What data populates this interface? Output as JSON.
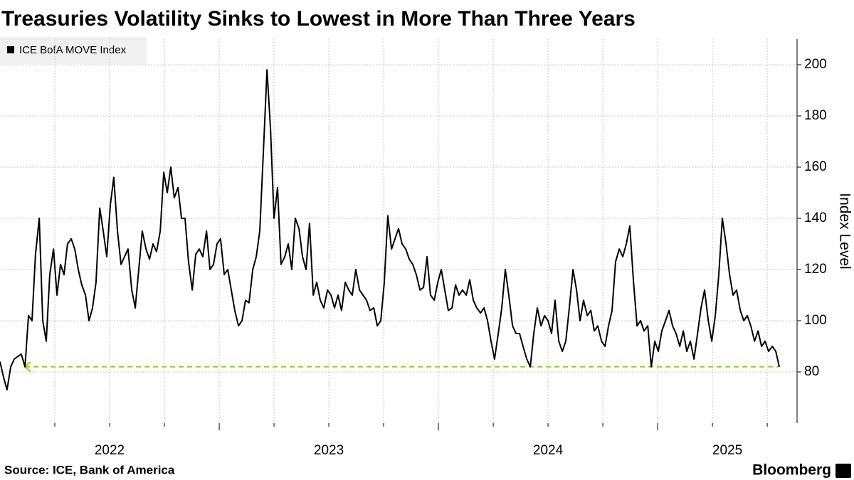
{
  "chart_data": {
    "type": "line",
    "title": "Treasuries Volatility Sinks to Lowest in More Than Three Years",
    "ylabel": "Index Level",
    "source": "Source: ICE, Bank of America",
    "brand": "Bloomberg",
    "x": [
      2022.0,
      2022.016,
      2022.032,
      2022.049,
      2022.065,
      2022.081,
      2022.097,
      2022.114,
      2022.13,
      2022.146,
      2022.162,
      2022.179,
      2022.195,
      2022.211,
      2022.227,
      2022.244,
      2022.26,
      2022.276,
      2022.292,
      2022.308,
      2022.325,
      2022.341,
      2022.357,
      2022.373,
      2022.39,
      2022.406,
      2022.422,
      2022.438,
      2022.455,
      2022.471,
      2022.487,
      2022.503,
      2022.519,
      2022.536,
      2022.552,
      2022.568,
      2022.584,
      2022.601,
      2022.617,
      2022.633,
      2022.649,
      2022.666,
      2022.682,
      2022.698,
      2022.714,
      2022.731,
      2022.747,
      2022.763,
      2022.779,
      2022.795,
      2022.812,
      2022.828,
      2022.844,
      2022.86,
      2022.877,
      2022.893,
      2022.909,
      2022.925,
      2022.942,
      2022.958,
      2022.974,
      2022.99,
      2023.006,
      2023.023,
      2023.039,
      2023.055,
      2023.071,
      2023.088,
      2023.104,
      2023.12,
      2023.136,
      2023.153,
      2023.169,
      2023.185,
      2023.201,
      2023.218,
      2023.234,
      2023.25,
      2023.266,
      2023.282,
      2023.299,
      2023.315,
      2023.331,
      2023.347,
      2023.364,
      2023.38,
      2023.396,
      2023.412,
      2023.429,
      2023.445,
      2023.461,
      2023.477,
      2023.494,
      2023.51,
      2023.526,
      2023.542,
      2023.558,
      2023.575,
      2023.591,
      2023.607,
      2023.623,
      2023.64,
      2023.656,
      2023.672,
      2023.688,
      2023.705,
      2023.721,
      2023.737,
      2023.753,
      2023.769,
      2023.786,
      2023.802,
      2023.818,
      2023.834,
      2023.851,
      2023.867,
      2023.883,
      2023.899,
      2023.916,
      2023.932,
      2023.948,
      2023.964,
      2023.981,
      2023.997,
      2024.013,
      2024.029,
      2024.045,
      2024.062,
      2024.078,
      2024.094,
      2024.11,
      2024.127,
      2024.143,
      2024.159,
      2024.175,
      2024.192,
      2024.208,
      2024.224,
      2024.24,
      2024.256,
      2024.273,
      2024.289,
      2024.305,
      2024.321,
      2024.338,
      2024.354,
      2024.37,
      2024.386,
      2024.403,
      2024.419,
      2024.435,
      2024.451,
      2024.468,
      2024.484,
      2024.5,
      2024.516,
      2024.532,
      2024.549,
      2024.565,
      2024.581,
      2024.597,
      2024.614,
      2024.63,
      2024.646,
      2024.662,
      2024.679,
      2024.695,
      2024.711,
      2024.727,
      2024.744,
      2024.76,
      2024.776,
      2024.792,
      2024.808,
      2024.825,
      2024.841,
      2024.857,
      2024.873,
      2024.89,
      2024.906,
      2024.922,
      2024.938,
      2024.955,
      2024.971,
      2024.987,
      2025.003,
      2025.019,
      2025.036,
      2025.052,
      2025.068,
      2025.084,
      2025.101,
      2025.117,
      2025.133,
      2025.149,
      2025.166,
      2025.182,
      2025.198,
      2025.214,
      2025.231,
      2025.247,
      2025.263,
      2025.279,
      2025.295,
      2025.312,
      2025.328,
      2025.344,
      2025.36,
      2025.377,
      2025.393,
      2025.409,
      2025.425,
      2025.442,
      2025.458,
      2025.474,
      2025.49,
      2025.506,
      2025.523,
      2025.539,
      2025.555
    ],
    "series": [
      {
        "name": "ICE BofA MOVE Index",
        "color": "#000000",
        "values": [
          84,
          78,
          73,
          82,
          85,
          86,
          87,
          82,
          102,
          100,
          126,
          140,
          100,
          92,
          118,
          128,
          110,
          122,
          118,
          130,
          132,
          128,
          120,
          114,
          110,
          100,
          105,
          115,
          144,
          135,
          125,
          145,
          156,
          135,
          122,
          125,
          128,
          112,
          105,
          120,
          135,
          128,
          124,
          130,
          127,
          135,
          158,
          150,
          160,
          148,
          152,
          140,
          140,
          123,
          112,
          126,
          128,
          125,
          135,
          120,
          122,
          130,
          132,
          118,
          120,
          112,
          104,
          98,
          100,
          108,
          107,
          120,
          125,
          135,
          165,
          198,
          175,
          140,
          152,
          122,
          125,
          130,
          120,
          140,
          136,
          125,
          120,
          138,
          110,
          115,
          108,
          105,
          112,
          110,
          105,
          110,
          104,
          115,
          112,
          110,
          120,
          112,
          110,
          108,
          104,
          105,
          98,
          100,
          115,
          141,
          128,
          132,
          136,
          130,
          128,
          124,
          122,
          118,
          112,
          113,
          125,
          110,
          108,
          115,
          120,
          112,
          104,
          105,
          114,
          110,
          112,
          110,
          116,
          108,
          105,
          103,
          105,
          100,
          92,
          85,
          95,
          105,
          120,
          110,
          98,
          95,
          95,
          90,
          85,
          82,
          95,
          105,
          98,
          102,
          100,
          95,
          108,
          92,
          88,
          92,
          105,
          120,
          112,
          100,
          108,
          102,
          104,
          96,
          98,
          92,
          90,
          98,
          104,
          123,
          128,
          125,
          130,
          137,
          115,
          98,
          100,
          96,
          98,
          82,
          92,
          88,
          96,
          100,
          104,
          98,
          95,
          90,
          96,
          88,
          92,
          85,
          95,
          105,
          112,
          100,
          92,
          102,
          118,
          140,
          130,
          118,
          110,
          112,
          104,
          100,
          102,
          98,
          92,
          96,
          90,
          92,
          88,
          90,
          88,
          82
        ]
      }
    ],
    "reference_line": {
      "value": 82,
      "x": [
        2022.114,
        2025.555
      ],
      "color": "#8fd321"
    },
    "xlim": [
      2022,
      2025.636
    ],
    "xticks": [
      2022,
      2023,
      2024,
      2025
    ],
    "ylim": [
      60,
      210
    ],
    "yticks": [
      80,
      100,
      120,
      140,
      160,
      180,
      200
    ],
    "grid": true,
    "legend": "top-left"
  }
}
